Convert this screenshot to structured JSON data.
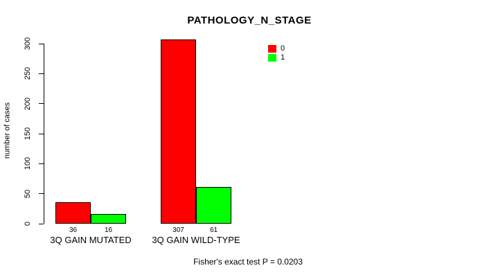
{
  "chart_data": {
    "type": "bar",
    "title": "PATHOLOGY_N_STAGE",
    "ylabel": "number of cases",
    "ylim": [
      0,
      300
    ],
    "yticks": [
      0,
      50,
      100,
      150,
      200,
      250,
      300
    ],
    "categories": [
      "3Q GAIN MUTATED",
      "3Q GAIN WILD-TYPE"
    ],
    "series": [
      {
        "name": "0",
        "color": "#ff0000",
        "values": [
          36,
          307
        ]
      },
      {
        "name": "1",
        "color": "#00ff00",
        "values": [
          16,
          61
        ]
      }
    ],
    "bar_count_labels": [
      [
        36,
        307
      ],
      [
        16,
        61
      ]
    ],
    "legend_position": "top-right",
    "grid": false,
    "footnote": "Fisher's exact test P = 0.0203"
  }
}
